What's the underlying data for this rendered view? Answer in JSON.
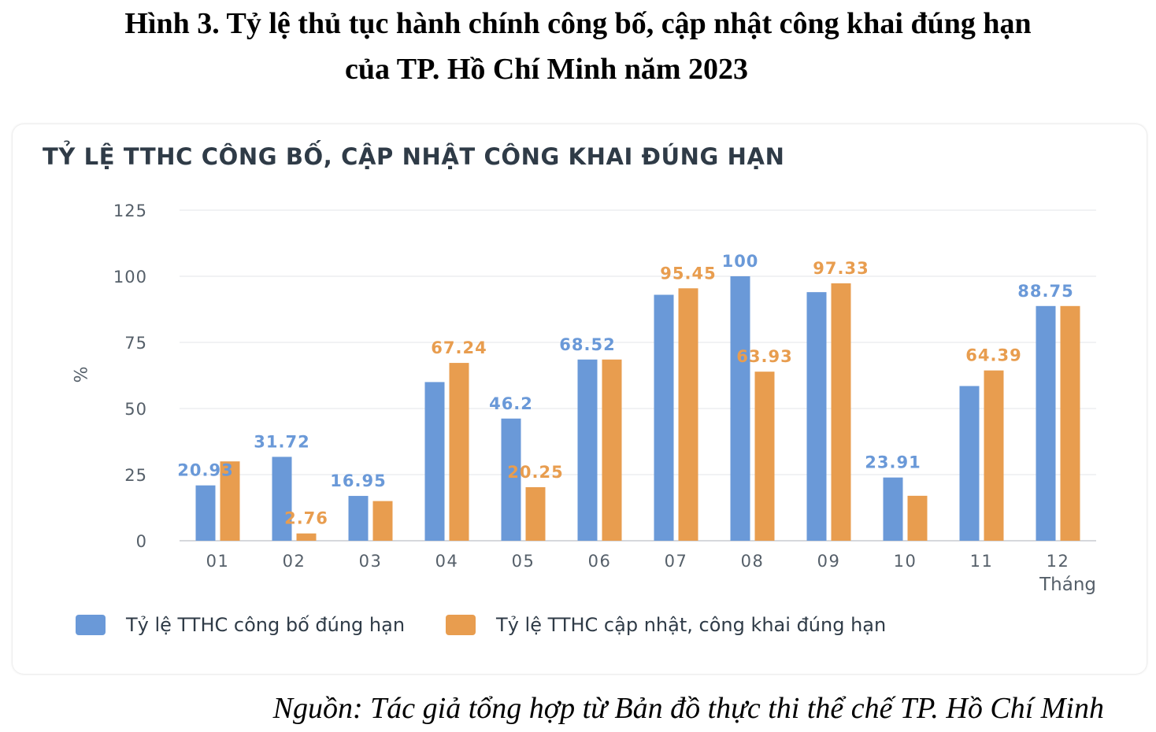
{
  "figure": {
    "title_line1": "Hình 3. Tỷ lệ thủ tục hành chính công bố, cập nhật công khai đúng hạn",
    "title_line2": "của TP. Hồ Chí Minh năm 2023",
    "source": "Nguồn: Tác giả tổng hợp từ Bản đồ thực thi thể chế TP. Hồ Chí Minh"
  },
  "colors": {
    "series1": "#6a99d8",
    "series2": "#e89d4f",
    "grid": "#e3e6ea",
    "axis_text": "#555f69"
  },
  "chart_data": {
    "type": "bar",
    "title": "TỶ LỆ TTHC CÔNG BỐ, CẬP NHẬT CÔNG KHAI ĐÚNG HẠN",
    "xlabel": "Tháng",
    "ylabel": "%",
    "ylim": [
      0,
      125
    ],
    "yticks": [
      0,
      25,
      50,
      75,
      100,
      125
    ],
    "grid": true,
    "legend_position": "bottom",
    "categories": [
      "01",
      "02",
      "03",
      "04",
      "05",
      "06",
      "07",
      "08",
      "09",
      "10",
      "11",
      "12"
    ],
    "series": [
      {
        "name": "Tỷ lệ TTHC công bố đúng hạn",
        "values": [
          20.93,
          31.72,
          16.95,
          60,
          46.2,
          68.52,
          93,
          100,
          94,
          23.91,
          58.5,
          88.75
        ],
        "labels": [
          "20.93",
          "31.72",
          "16.95",
          "",
          "46.2",
          "68.52",
          "",
          "100",
          "",
          "23.91",
          "",
          "88.75"
        ]
      },
      {
        "name": "Tỷ lệ TTHC cập nhật, công khai đúng hạn",
        "values": [
          30,
          2.76,
          15,
          67.24,
          20.25,
          68.52,
          95.45,
          63.93,
          97.33,
          17,
          64.39,
          88.75
        ],
        "labels": [
          "",
          "2.76",
          "",
          "67.24",
          "20.25",
          "",
          "95.45",
          "63.93",
          "97.33",
          "",
          "64.39",
          ""
        ]
      }
    ]
  }
}
